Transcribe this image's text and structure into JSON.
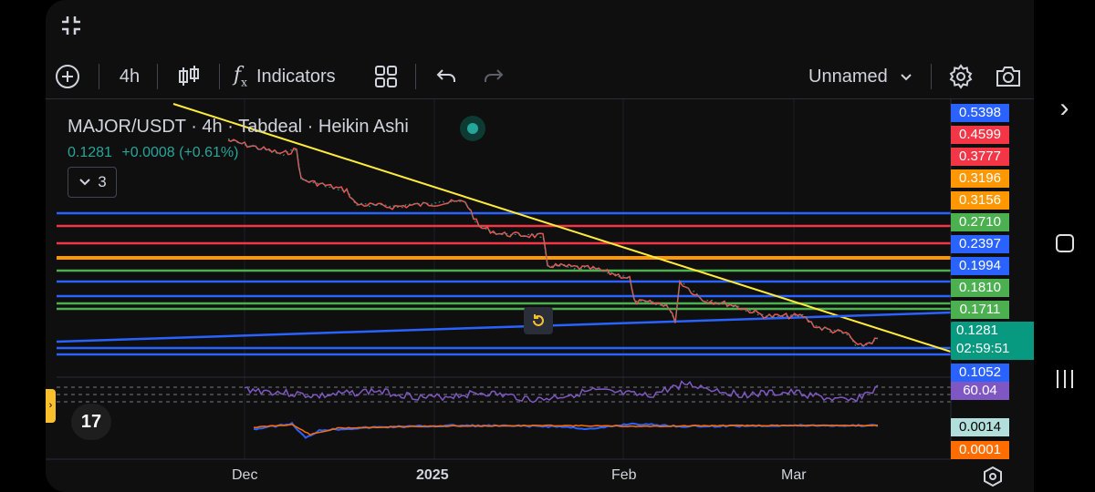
{
  "toolbar": {
    "interval": "4h",
    "indicators_label": "Indicators",
    "layout_name": "Unnamed"
  },
  "legend": {
    "symbol_title": "MAJOR/USDT · 4h · Tabdeal · Heikin Ashi",
    "last_price": "0.1281",
    "change": "+0.0008 (+0.61%)",
    "indicators_count": "3"
  },
  "price_labels": [
    {
      "text": "0.5398",
      "color": "#2962ff"
    },
    {
      "text": "0.4599",
      "color": "#f23645"
    },
    {
      "text": "0.3777",
      "color": "#f23645"
    },
    {
      "text": "0.3196",
      "color": "#ff9800"
    },
    {
      "text": "0.3156",
      "color": "#ff9800"
    },
    {
      "text": "0.2710",
      "color": "#4caf50"
    },
    {
      "text": "0.2397",
      "color": "#2962ff"
    },
    {
      "text": "0.1994",
      "color": "#2962ff"
    },
    {
      "text": "0.1810",
      "color": "#4caf50"
    },
    {
      "text": "0.1711",
      "color": "#4caf50"
    },
    {
      "text": "0.1052",
      "color": "#2962ff"
    }
  ],
  "current_price": {
    "price": "0.1281",
    "countdown": "02:59:51",
    "color": "#089981"
  },
  "rsi_label": {
    "value": "60.04",
    "color": "#7e57c2"
  },
  "macd_labels": [
    {
      "value": "0.0014",
      "color": "#b2dfdb"
    },
    {
      "value": "0.0001",
      "color": "#ff6d00"
    }
  ],
  "time_axis": [
    "Dec",
    "2025",
    "Feb",
    "Mar"
  ],
  "icons": {
    "fullscreen": "collapse-icon",
    "add": "plus-circle-icon",
    "chart_type": "candles-icon",
    "indicators": "fx-icon",
    "templates": "grid-icon",
    "undo": "undo-icon",
    "redo": "redo-icon",
    "settings": "gear-icon",
    "snapshot": "camera-icon",
    "replay": "replay-icon",
    "time_settings": "hexagon-icon"
  }
}
